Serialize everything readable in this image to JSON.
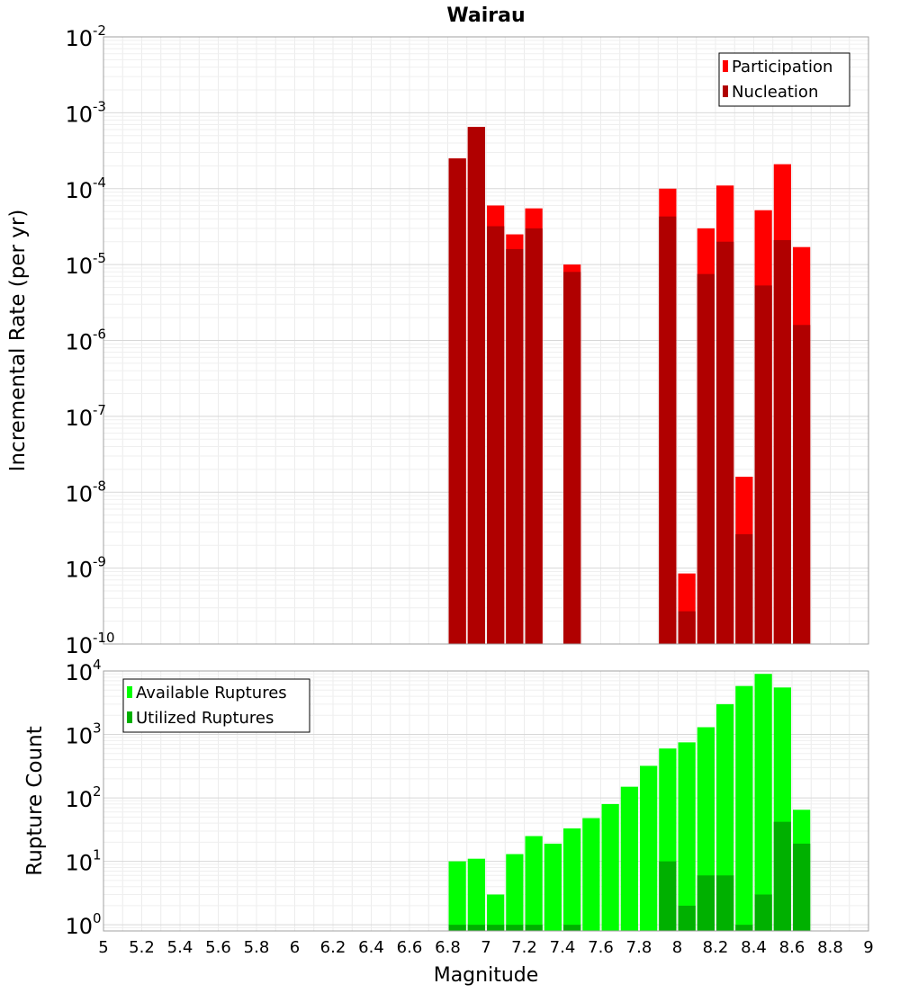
{
  "chart_data": [
    {
      "type": "bar",
      "title": "Wairau",
      "ylabel": "Incremental Rate (per yr)",
      "xlabel": "",
      "yscale": "log",
      "ylim": [
        1e-10,
        0.01
      ],
      "xlim": [
        5,
        9
      ],
      "grid": true,
      "bar_width": 0.1,
      "yticks": [
        {
          "base": "10",
          "exp": "-2"
        },
        {
          "base": "10",
          "exp": "-3"
        },
        {
          "base": "10",
          "exp": "-4"
        },
        {
          "base": "10",
          "exp": "-5"
        },
        {
          "base": "10",
          "exp": "-6"
        },
        {
          "base": "10",
          "exp": "-7"
        },
        {
          "base": "10",
          "exp": "-8"
        },
        {
          "base": "10",
          "exp": "-9"
        },
        {
          "base": "10",
          "exp": "-10"
        }
      ],
      "legend": {
        "position": "top-right",
        "entries": [
          {
            "label": "Participation",
            "color": "#ff0000"
          },
          {
            "label": "Nucleation",
            "color": "#b00000"
          }
        ]
      },
      "x": [
        6.85,
        6.95,
        7.05,
        7.15,
        7.25,
        7.45,
        7.95,
        8.05,
        8.15,
        8.25,
        8.35,
        8.45,
        8.55,
        8.65
      ],
      "series": [
        {
          "name": "Participation",
          "color": "#ff0000",
          "values": [
            0.00025,
            0.00065,
            6e-05,
            2.5e-05,
            5.5e-05,
            1e-05,
            0.0001,
            8.5e-10,
            3e-05,
            0.00011,
            1.6e-08,
            5.2e-05,
            0.00021,
            1.7e-05
          ]
        },
        {
          "name": "Nucleation",
          "color": "#b00000",
          "values": [
            0.00025,
            0.00065,
            3.2e-05,
            1.6e-05,
            3e-05,
            8e-06,
            4.3e-05,
            2.7e-10,
            7.5e-06,
            2e-05,
            2.8e-09,
            5.3e-06,
            2.1e-05,
            1.6e-06
          ]
        }
      ]
    },
    {
      "type": "bar",
      "title": "",
      "ylabel": "Rupture Count",
      "xlabel": "Magnitude",
      "yscale": "log",
      "ylim": [
        0.8,
        10000
      ],
      "xlim": [
        5,
        9
      ],
      "grid": true,
      "bar_width": 0.1,
      "yticks": [
        {
          "base": "10",
          "exp": "4"
        },
        {
          "base": "10",
          "exp": "3"
        },
        {
          "base": "10",
          "exp": "2"
        },
        {
          "base": "10",
          "exp": "1"
        },
        {
          "base": "10",
          "exp": "0"
        }
      ],
      "xticks": [
        "5",
        "5.2",
        "5.4",
        "5.6",
        "5.8",
        "6",
        "6.2",
        "6.4",
        "6.6",
        "6.8",
        "7",
        "7.2",
        "7.4",
        "7.6",
        "7.8",
        "8",
        "8.2",
        "8.4",
        "8.6",
        "8.8",
        "9"
      ],
      "legend": {
        "position": "top-left",
        "entries": [
          {
            "label": "Available Ruptures",
            "color": "#00ff00"
          },
          {
            "label": "Utilized Ruptures",
            "color": "#00b000"
          }
        ]
      },
      "x": [
        6.85,
        6.95,
        7.05,
        7.15,
        7.25,
        7.35,
        7.45,
        7.55,
        7.65,
        7.75,
        7.85,
        7.95,
        8.05,
        8.15,
        8.25,
        8.35,
        8.45,
        8.55,
        8.65
      ],
      "series": [
        {
          "name": "Available Ruptures",
          "color": "#00ff00",
          "values": [
            10,
            11,
            3,
            13,
            25,
            19,
            33,
            48,
            80,
            150,
            320,
            600,
            750,
            1300,
            3000,
            5800,
            9000,
            5500,
            65
          ]
        },
        {
          "name": "Utilized Ruptures",
          "color": "#00b000",
          "values": [
            1,
            1,
            1,
            1,
            1,
            0,
            1,
            0,
            0,
            0,
            0,
            10,
            2,
            6,
            6,
            1,
            3,
            42,
            19
          ]
        }
      ]
    }
  ]
}
